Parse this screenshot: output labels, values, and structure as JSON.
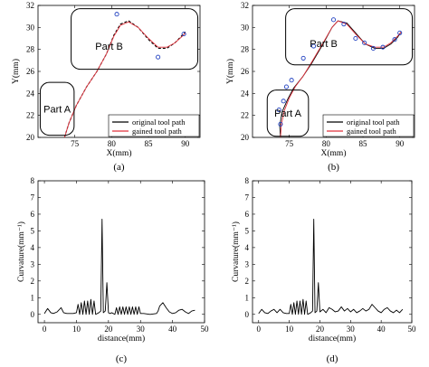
{
  "chart_data": [
    {
      "panel": "(a)",
      "type": "line",
      "xlabel": "X(mm)",
      "ylabel": "Y(mm)",
      "xlim": [
        70,
        92
      ],
      "ylim": [
        20,
        32
      ],
      "xticks": [
        75,
        80,
        85,
        90
      ],
      "yticks": [
        20,
        22,
        24,
        26,
        28,
        30,
        32
      ],
      "regions": [
        {
          "label": "Part A",
          "x0": 70.3,
          "x1": 74.9,
          "y0": 20.2,
          "y1": 25.0
        },
        {
          "label": "Part B",
          "x0": 74.5,
          "x1": 91.7,
          "y0": 26.2,
          "y1": 31.7
        }
      ],
      "legend": {
        "position": "bottom-right"
      },
      "series": [
        {
          "name": "original tool path",
          "color": "#000000",
          "style": "dashed",
          "x": [
            73.6,
            74.2,
            75.2,
            76.6,
            78.0,
            79.3,
            80.3,
            81.2,
            82.3,
            83.6,
            85.0,
            86.3,
            87.5,
            88.6,
            89.6,
            90.0
          ],
          "y": [
            20.0,
            21.3,
            22.9,
            24.6,
            26.0,
            27.6,
            29.3,
            30.3,
            30.6,
            30.0,
            28.9,
            28.1,
            28.1,
            28.6,
            29.3,
            29.6
          ]
        },
        {
          "name": "gained tool path",
          "color": "#e0303a",
          "style": "solid",
          "x": [
            73.6,
            74.2,
            75.2,
            76.6,
            78.0,
            79.3,
            80.3,
            81.2,
            82.3,
            83.6,
            85.0,
            86.3,
            87.5,
            88.6,
            89.6,
            90.0
          ],
          "y": [
            20.0,
            21.3,
            22.9,
            24.6,
            26.0,
            27.6,
            29.2,
            30.2,
            30.5,
            30.0,
            29.0,
            28.2,
            28.2,
            28.6,
            29.2,
            29.5
          ]
        },
        {
          "name": "control points",
          "color": "#2040c0",
          "style": "marker",
          "x": [
            80.7,
            86.3,
            89.8
          ],
          "y": [
            31.2,
            27.3,
            29.4
          ]
        }
      ]
    },
    {
      "panel": "(b)",
      "type": "line",
      "xlabel": "X(mm)",
      "ylabel": "Y(mm)",
      "xlim": [
        70,
        92
      ],
      "ylim": [
        20,
        32
      ],
      "xticks": [
        75,
        80,
        85,
        90
      ],
      "yticks": [
        20,
        22,
        24,
        26,
        28,
        30,
        32
      ],
      "regions": [
        {
          "label": "Part A",
          "x0": 72.0,
          "x1": 77.6,
          "y0": 20.1,
          "y1": 24.3
        },
        {
          "label": "Part B",
          "x0": 74.5,
          "x1": 91.7,
          "y0": 26.6,
          "y1": 31.7
        }
      ],
      "legend": {
        "position": "bottom-right"
      },
      "series": [
        {
          "name": "original tool path",
          "color": "#000000",
          "style": "solid",
          "x": [
            73.8,
            73.7,
            74.0,
            74.8,
            75.6,
            76.8,
            78.0,
            79.5,
            80.8,
            81.6,
            82.8,
            84.0,
            85.3,
            86.6,
            87.8,
            88.8,
            89.7,
            90.2
          ],
          "y": [
            20.0,
            21.0,
            22.3,
            23.5,
            24.5,
            25.5,
            26.7,
            28.4,
            30.0,
            30.6,
            30.4,
            29.5,
            28.5,
            28.1,
            28.1,
            28.5,
            29.1,
            29.6
          ]
        },
        {
          "name": "gained tool path",
          "color": "#e0303a",
          "style": "solid",
          "x": [
            73.8,
            73.9,
            74.3,
            75.0,
            75.8,
            76.9,
            78.0,
            79.5,
            80.8,
            81.6,
            82.8,
            84.0,
            85.3,
            86.6,
            87.8,
            88.8,
            89.7,
            90.2
          ],
          "y": [
            20.0,
            21.1,
            22.4,
            23.6,
            24.6,
            25.6,
            26.8,
            28.5,
            30.0,
            30.6,
            30.3,
            29.4,
            28.5,
            28.2,
            28.2,
            28.6,
            29.2,
            29.6
          ]
        },
        {
          "name": "control points",
          "color": "#2040c0",
          "style": "marker",
          "x": [
            73.6,
            73.8,
            74.2,
            74.6,
            75.3,
            76.9,
            78.3,
            81.0,
            82.4,
            84.0,
            85.2,
            86.4,
            87.7,
            89.3,
            90.0
          ],
          "y": [
            22.5,
            21.2,
            23.3,
            24.6,
            25.2,
            27.2,
            28.3,
            30.7,
            30.3,
            29.0,
            28.6,
            28.1,
            28.2,
            28.9,
            29.5
          ]
        }
      ]
    },
    {
      "panel": "(c)",
      "type": "line",
      "xlabel": "distance(mm)",
      "ylabel": "Curvature(mm⁻¹)",
      "xlim": [
        -2,
        50
      ],
      "ylim": [
        -0.5,
        8
      ],
      "xticks": [
        0,
        10,
        20,
        30,
        40,
        50
      ],
      "yticks": [
        0,
        1,
        2,
        3,
        4,
        5,
        6,
        7,
        8
      ],
      "series": [
        {
          "name": "curvature",
          "color": "#000000",
          "x": [
            0,
            1.0,
            2.0,
            2.8,
            4.0,
            5.2,
            6.0,
            7.0,
            8.0,
            9.0,
            10.0,
            10.5,
            11.0,
            11.5,
            12.0,
            12.5,
            13.0,
            13.5,
            14.0,
            14.5,
            15.0,
            15.5,
            16.0,
            17.0,
            17.6,
            18.0,
            18.4,
            19.0,
            19.5,
            20.0,
            20.5,
            21.0,
            22.0,
            22.5,
            23.0,
            23.5,
            24.0,
            24.5,
            25.0,
            25.5,
            26.0,
            26.5,
            27.0,
            27.5,
            28.0,
            28.5,
            29.0,
            29.5,
            30.0,
            31.0,
            33.0,
            35.0,
            35.5,
            36.0,
            37.0,
            38.0,
            39.0,
            40.0,
            41.0,
            42.0,
            43.0,
            44.0,
            45.0,
            46.0,
            47.0
          ],
          "y": [
            0.05,
            0.35,
            0.1,
            0.05,
            0.15,
            0.4,
            0.1,
            0.05,
            0.05,
            0.05,
            0.1,
            0.6,
            0.0,
            0.7,
            0.0,
            0.8,
            0.0,
            0.8,
            0.0,
            0.9,
            0.0,
            0.8,
            0.0,
            0.1,
            0.2,
            5.7,
            0.1,
            0.2,
            1.9,
            0.1,
            0.05,
            0.1,
            0.0,
            0.4,
            0.0,
            0.45,
            0.0,
            0.45,
            0.0,
            0.45,
            0.0,
            0.45,
            0.0,
            0.45,
            0.0,
            0.45,
            0.0,
            0.45,
            0.05,
            0.05,
            0.0,
            0.05,
            0.2,
            0.5,
            0.7,
            0.4,
            0.15,
            0.05,
            0.1,
            0.25,
            0.3,
            0.15,
            0.05,
            0.2,
            0.25
          ]
        }
      ]
    },
    {
      "panel": "(d)",
      "type": "line",
      "xlabel": "distance(mm)",
      "ylabel": "Curvature(mm⁻¹)",
      "xlim": [
        -2,
        50
      ],
      "ylim": [
        -0.5,
        8
      ],
      "xticks": [
        0,
        10,
        20,
        30,
        40,
        50
      ],
      "yticks": [
        0,
        1,
        2,
        3,
        4,
        5,
        6,
        7,
        8
      ],
      "series": [
        {
          "name": "curvature",
          "color": "#000000",
          "x": [
            0,
            1.0,
            2.0,
            3.0,
            4.0,
            5.0,
            6.0,
            7.0,
            8.0,
            9.0,
            10.0,
            10.5,
            11.0,
            11.5,
            12.0,
            12.5,
            13.0,
            13.5,
            14.0,
            14.5,
            15.0,
            15.5,
            16.0,
            17.0,
            17.6,
            18.0,
            18.4,
            19.0,
            19.5,
            20.0,
            21.0,
            22.0,
            23.0,
            24.0,
            25.0,
            26.0,
            27.0,
            28.0,
            29.0,
            30.0,
            31.0,
            32.0,
            33.0,
            34.0,
            35.0,
            36.0,
            37.0,
            38.0,
            39.0,
            40.0,
            41.0,
            42.0,
            43.0,
            44.0,
            45.0,
            46.0,
            47.0
          ],
          "y": [
            0.05,
            0.3,
            0.1,
            0.05,
            0.2,
            0.3,
            0.1,
            0.3,
            0.1,
            0.05,
            0.05,
            0.6,
            0.0,
            0.7,
            0.0,
            0.8,
            0.0,
            0.8,
            0.0,
            0.9,
            0.0,
            0.8,
            0.0,
            0.1,
            0.2,
            5.7,
            0.1,
            0.2,
            1.9,
            0.15,
            0.3,
            0.1,
            0.4,
            0.3,
            0.15,
            0.2,
            0.45,
            0.2,
            0.35,
            0.15,
            0.3,
            0.1,
            0.2,
            0.35,
            0.2,
            0.3,
            0.6,
            0.4,
            0.2,
            0.1,
            0.3,
            0.4,
            0.2,
            0.1,
            0.25,
            0.1,
            0.3
          ]
        }
      ]
    }
  ]
}
